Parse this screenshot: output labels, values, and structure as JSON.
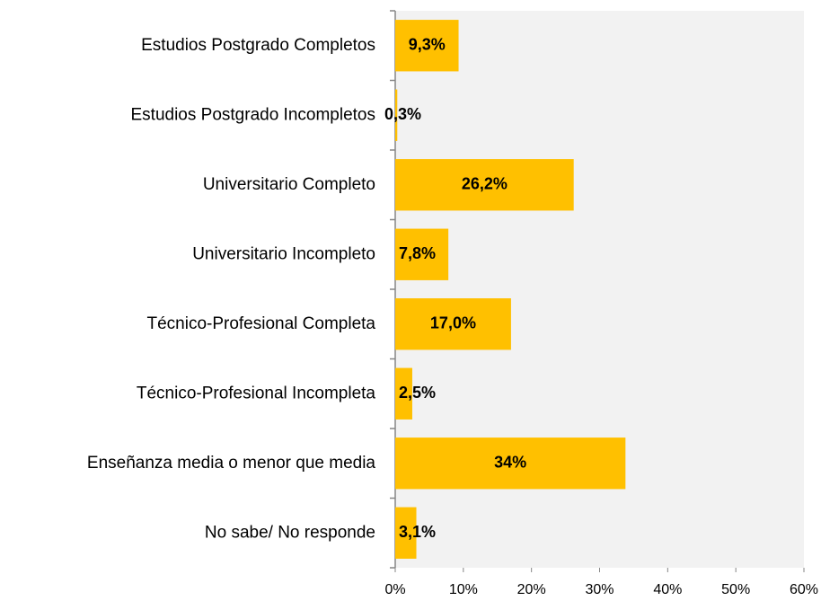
{
  "chart_data": {
    "type": "barh",
    "categories": [
      "Estudios Postgrado Completos",
      "Estudios Postgrado Incompletos",
      "Universitario Completo",
      "Universitario Incompleto",
      "Técnico-Profesional Completa",
      "Técnico-Profesional Incompleta",
      "Enseñanza media o menor que media",
      "No sabe/ No responde"
    ],
    "values": [
      9.3,
      0.3,
      26.2,
      7.8,
      17.0,
      2.5,
      33.8,
      3.1
    ],
    "value_labels": [
      "9,3%",
      "0,3%",
      "26,2%",
      "7,8%",
      "17,0%",
      "2,5%",
      "34%",
      "3,1%"
    ],
    "color": "#ffc000",
    "xlim": [
      0,
      60
    ],
    "xticks": [
      {
        "value": 0,
        "label": "0%"
      },
      {
        "value": 10,
        "label": "10%"
      },
      {
        "value": 20,
        "label": "20%"
      },
      {
        "value": 30,
        "label": "30%"
      },
      {
        "value": 40,
        "label": "40%"
      },
      {
        "value": 50,
        "label": "50%"
      },
      {
        "value": 60,
        "label": "60%"
      }
    ],
    "grid": false
  }
}
